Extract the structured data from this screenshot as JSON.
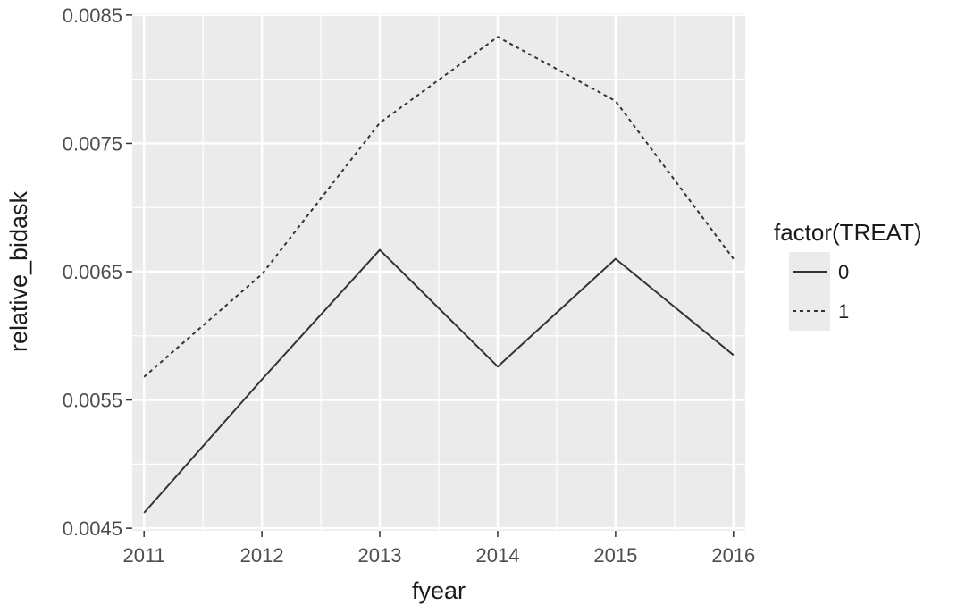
{
  "chart_data": {
    "type": "line",
    "xlabel": "fyear",
    "ylabel": "relative_bidask",
    "x": [
      2011,
      2012,
      2013,
      2014,
      2015,
      2016
    ],
    "xlim": [
      2010.9,
      2016.1
    ],
    "ylim": [
      0.00448,
      0.00852
    ],
    "y_ticks": [
      0.0045,
      0.0055,
      0.0065,
      0.0075,
      0.0085
    ],
    "y_tick_labels": [
      "0.0045",
      "0.0055",
      "0.0065",
      "0.0075",
      "0.0085"
    ],
    "x_tick_labels": [
      "2011",
      "2012",
      "2013",
      "2014",
      "2015",
      "2016"
    ],
    "grid": true,
    "legend": {
      "title": "factor(TREAT)",
      "placement": "right"
    },
    "series": [
      {
        "name": "0",
        "linetype": "solid",
        "values": [
          0.00462,
          0.00566,
          0.00667,
          0.00576,
          0.0066,
          0.00585
        ]
      },
      {
        "name": "1",
        "linetype": "dotted",
        "values": [
          0.00568,
          0.00648,
          0.00766,
          0.00833,
          0.00783,
          0.0066
        ]
      }
    ],
    "colors": {
      "panel": "#ebebeb",
      "grid": "#ffffff",
      "line": "#333333"
    }
  }
}
